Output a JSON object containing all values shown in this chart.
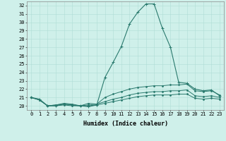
{
  "title": "",
  "xlabel": "Humidex (Indice chaleur)",
  "ylabel": "",
  "xlim": [
    -0.5,
    23.5
  ],
  "ylim": [
    19.5,
    32.5
  ],
  "xticks": [
    0,
    1,
    2,
    3,
    4,
    5,
    6,
    7,
    8,
    9,
    10,
    11,
    12,
    13,
    14,
    15,
    16,
    17,
    18,
    19,
    20,
    21,
    22,
    23
  ],
  "yticks": [
    20,
    21,
    22,
    23,
    24,
    25,
    26,
    27,
    28,
    29,
    30,
    31,
    32
  ],
  "bg_color": "#cff0ea",
  "grid_color": "#b0ddd6",
  "line_color": "#2a7a6e",
  "lines": [
    {
      "x": [
        0,
        1,
        2,
        3,
        4,
        5,
        6,
        7,
        8,
        9,
        10,
        11,
        12,
        13,
        14,
        15,
        16,
        17,
        18,
        19,
        20,
        21,
        22,
        23
      ],
      "y": [
        21.0,
        20.8,
        20.0,
        20.0,
        20.2,
        20.1,
        20.0,
        19.9,
        20.1,
        23.4,
        25.2,
        27.1,
        29.8,
        31.2,
        32.2,
        32.2,
        29.3,
        27.0,
        22.8,
        22.7,
        22.0,
        21.8,
        21.9,
        21.2
      ],
      "marker": "+",
      "markersize": 3.5,
      "lw": 0.8
    },
    {
      "x": [
        0,
        1,
        2,
        3,
        4,
        5,
        6,
        7,
        8,
        9,
        10,
        11,
        12,
        13,
        14,
        15,
        16,
        17,
        18,
        19,
        20,
        21,
        22,
        23
      ],
      "y": [
        21.0,
        20.7,
        20.0,
        20.1,
        20.3,
        20.2,
        20.0,
        20.3,
        20.2,
        21.0,
        21.4,
        21.7,
        22.0,
        22.2,
        22.3,
        22.4,
        22.4,
        22.5,
        22.5,
        22.6,
        21.8,
        21.7,
        21.8,
        21.3
      ],
      "marker": ".",
      "markersize": 2.5,
      "lw": 0.7
    },
    {
      "x": [
        0,
        1,
        2,
        3,
        4,
        5,
        6,
        7,
        8,
        9,
        10,
        11,
        12,
        13,
        14,
        15,
        16,
        17,
        18,
        19,
        20,
        21,
        22,
        23
      ],
      "y": [
        21.0,
        20.7,
        20.0,
        20.1,
        20.2,
        20.1,
        20.0,
        20.1,
        20.2,
        20.5,
        20.8,
        21.0,
        21.3,
        21.5,
        21.6,
        21.7,
        21.7,
        21.8,
        21.8,
        21.9,
        21.2,
        21.1,
        21.2,
        21.0
      ],
      "marker": ".",
      "markersize": 2.5,
      "lw": 0.7
    },
    {
      "x": [
        0,
        1,
        2,
        3,
        4,
        5,
        6,
        7,
        8,
        9,
        10,
        11,
        12,
        13,
        14,
        15,
        16,
        17,
        18,
        19,
        20,
        21,
        22,
        23
      ],
      "y": [
        21.0,
        20.7,
        20.0,
        20.0,
        20.1,
        20.0,
        20.0,
        20.0,
        20.1,
        20.3,
        20.5,
        20.7,
        20.9,
        21.1,
        21.2,
        21.3,
        21.3,
        21.3,
        21.4,
        21.4,
        20.9,
        20.8,
        20.9,
        20.8
      ],
      "marker": ".",
      "markersize": 2.5,
      "lw": 0.7
    }
  ],
  "tick_fontsize": 5.0,
  "label_fontsize": 6.0,
  "figwidth": 3.2,
  "figheight": 2.0,
  "dpi": 100
}
